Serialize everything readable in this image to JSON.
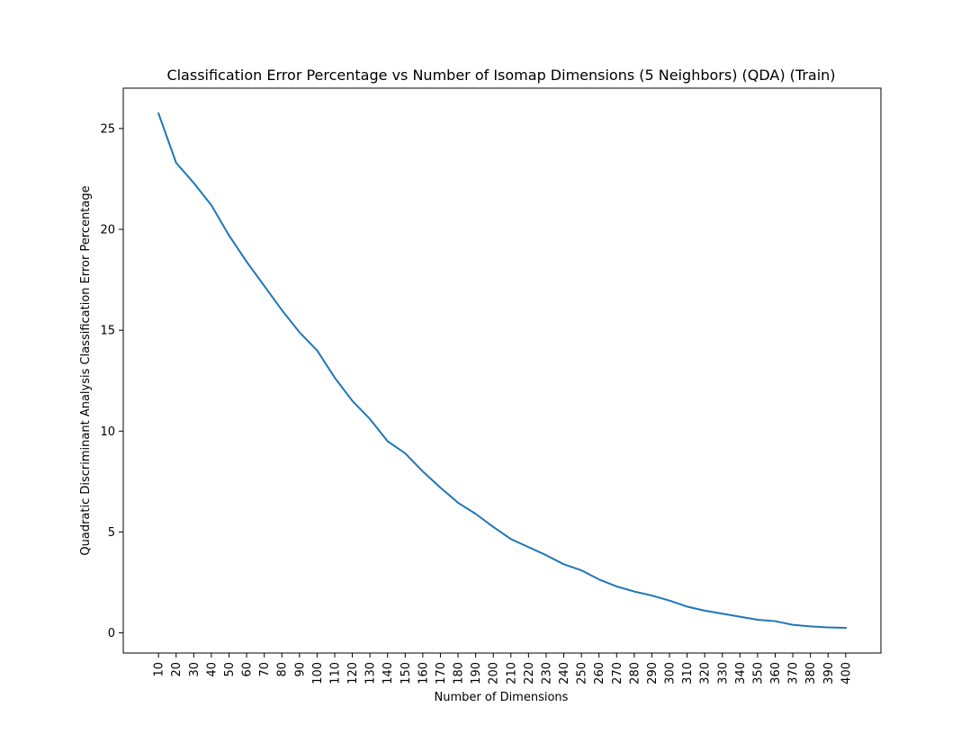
{
  "chart_data": {
    "type": "line",
    "title": "Classification Error Percentage vs Number of Isomap Dimensions (5 Neighbors) (QDA) (Train)",
    "xlabel": "Number of Dimensions",
    "ylabel": "Quadratic Discriminant Analysis Classification Error Percentage",
    "x": [
      10,
      20,
      30,
      40,
      50,
      60,
      70,
      80,
      90,
      100,
      110,
      120,
      130,
      140,
      150,
      160,
      170,
      180,
      190,
      200,
      210,
      220,
      230,
      240,
      250,
      260,
      270,
      280,
      290,
      300,
      310,
      320,
      330,
      340,
      350,
      360,
      370,
      380,
      390,
      400
    ],
    "x_tick_labels": [
      "10",
      "20",
      "30",
      "40",
      "50",
      "60",
      "70",
      "80",
      "90",
      "100",
      "110",
      "120",
      "130",
      "140",
      "150",
      "160",
      "170",
      "180",
      "190",
      "200",
      "210",
      "220",
      "230",
      "240",
      "250",
      "260",
      "270",
      "280",
      "290",
      "300",
      "310",
      "320",
      "330",
      "340",
      "350",
      "360",
      "370",
      "380",
      "390",
      "400"
    ],
    "y_ticks": [
      0,
      5,
      10,
      15,
      20,
      25
    ],
    "y_tick_labels": [
      "0",
      "5",
      "10",
      "15",
      "20",
      "25"
    ],
    "xlim": [
      -10,
      420
    ],
    "ylim": [
      -1.0,
      27.0
    ],
    "grid": false,
    "series": [
      {
        "color": "#1f77b4",
        "values": [
          25.75,
          23.3,
          22.3,
          21.2,
          19.7,
          18.4,
          17.2,
          16.0,
          14.9,
          14.0,
          12.65,
          11.5,
          10.6,
          9.5,
          8.9,
          8.0,
          7.2,
          6.45,
          5.9,
          5.25,
          4.65,
          4.25,
          3.85,
          3.4,
          3.1,
          2.65,
          2.3,
          2.05,
          1.85,
          1.6,
          1.3,
          1.1,
          0.95,
          0.8,
          0.65,
          0.58,
          0.4,
          0.32,
          0.27,
          0.25
        ]
      }
    ]
  }
}
